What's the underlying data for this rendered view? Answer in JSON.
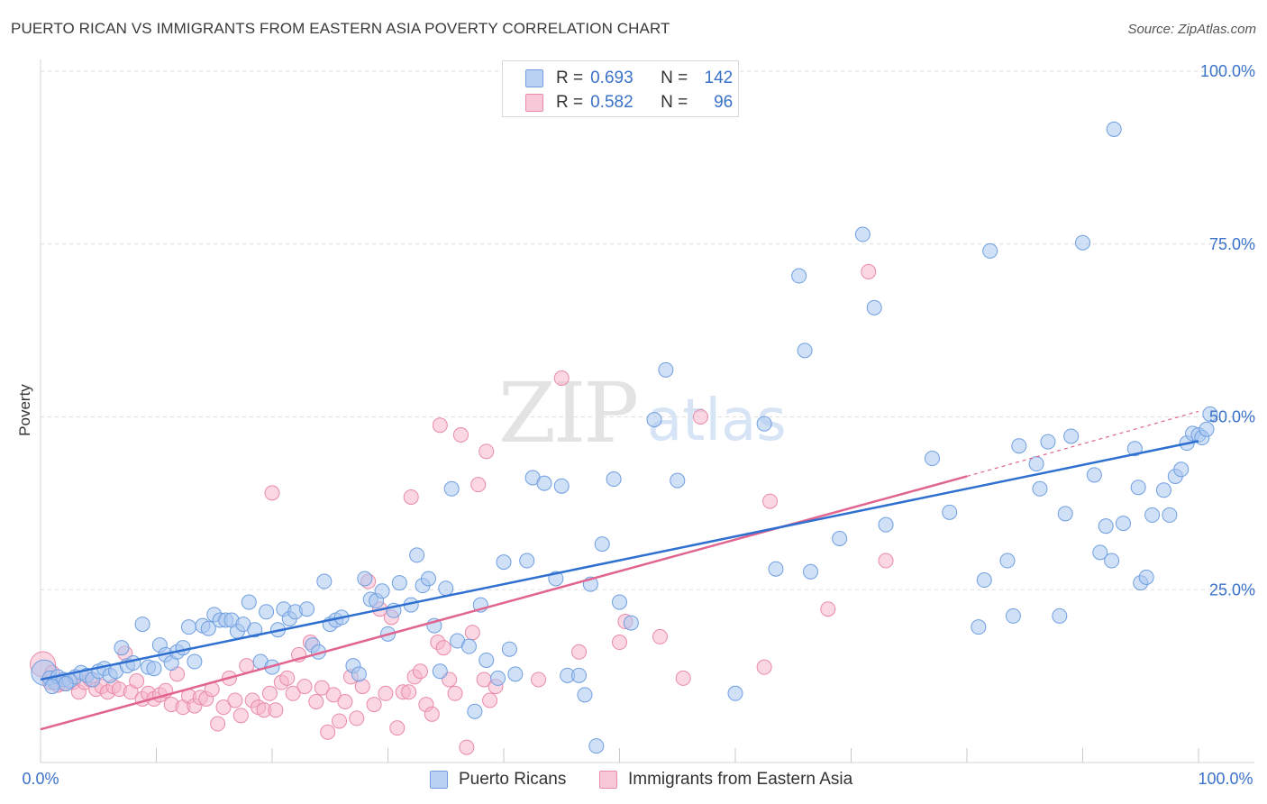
{
  "title": "PUERTO RICAN VS IMMIGRANTS FROM EASTERN ASIA POVERTY CORRELATION CHART",
  "source": "Source: ZipAtlas.com",
  "watermark": {
    "zip": "ZIP",
    "atlas": "atlas"
  },
  "legend": {
    "series1": {
      "r_label": "R =",
      "r_value": "0.693",
      "n_label": "N =",
      "n_value": "142"
    },
    "series2": {
      "r_label": "R =",
      "r_value": "0.582",
      "n_label": "N =",
      "n_value": "96"
    }
  },
  "bottom_legend": {
    "series1": "Puerto Ricans",
    "series2": "Immigrants from Eastern Asia"
  },
  "colors": {
    "blue_fill": "#a9c6f0",
    "blue_stroke": "#6f9fe0",
    "blue_line": "#2e6fd0",
    "pink_fill": "#f6b6ca",
    "pink_stroke": "#e98aab",
    "pink_line": "#e0648f",
    "axis_text": "#3a72c8",
    "grid": "#dddddd"
  },
  "chart_data": {
    "type": "scatter",
    "title": "PUERTO RICAN VS IMMIGRANTS FROM EASTERN ASIA POVERTY CORRELATION CHART",
    "xlabel": "",
    "ylabel": "Poverty",
    "xlim": [
      0,
      100
    ],
    "ylim": [
      0,
      100
    ],
    "x_tick_labels": [
      "0.0%",
      "100.0%"
    ],
    "y_tick_values": [
      25,
      50,
      75,
      100
    ],
    "y_tick_labels": [
      "25.0%",
      "50.0%",
      "75.0%",
      "100.0%"
    ],
    "series": [
      {
        "name": "Puerto Ricans",
        "r": 0.693,
        "n": 142,
        "trend": {
          "x0": 0,
          "y0": 12.0,
          "x1": 100,
          "y1": 46.5
        },
        "points": [
          [
            0.3,
            13.0
          ],
          [
            0.8,
            12.2
          ],
          [
            1.2,
            11.6
          ],
          [
            1.5,
            12.4
          ],
          [
            2.0,
            12.0
          ],
          [
            2.5,
            11.8
          ],
          [
            3.0,
            12.4
          ],
          [
            3.5,
            13.0
          ],
          [
            4.0,
            12.6
          ],
          [
            4.5,
            12.0
          ],
          [
            5.0,
            13.2
          ],
          [
            5.5,
            13.6
          ],
          [
            6.0,
            12.6
          ],
          [
            6.5,
            13.2
          ],
          [
            7.0,
            16.6
          ],
          [
            7.5,
            14.0
          ],
          [
            8.0,
            14.4
          ],
          [
            8.8,
            20.0
          ],
          [
            9.3,
            13.8
          ],
          [
            9.8,
            13.6
          ],
          [
            10.3,
            17.0
          ],
          [
            10.8,
            15.6
          ],
          [
            11.3,
            14.4
          ],
          [
            11.8,
            16.0
          ],
          [
            12.3,
            16.6
          ],
          [
            12.8,
            19.6
          ],
          [
            13.3,
            14.6
          ],
          [
            14.0,
            19.8
          ],
          [
            14.5,
            19.4
          ],
          [
            15.0,
            21.4
          ],
          [
            15.5,
            20.6
          ],
          [
            16.0,
            20.6
          ],
          [
            16.5,
            20.6
          ],
          [
            17.0,
            19.0
          ],
          [
            17.5,
            20.0
          ],
          [
            18.0,
            23.2
          ],
          [
            18.5,
            19.2
          ],
          [
            19.0,
            14.6
          ],
          [
            19.5,
            21.8
          ],
          [
            20.0,
            13.8
          ],
          [
            20.5,
            19.2
          ],
          [
            21.0,
            22.2
          ],
          [
            21.5,
            20.8
          ],
          [
            22.0,
            21.8
          ],
          [
            23.0,
            22.2
          ],
          [
            23.5,
            17.0
          ],
          [
            24.0,
            16.0
          ],
          [
            24.5,
            26.2
          ],
          [
            25.0,
            20.0
          ],
          [
            25.5,
            20.6
          ],
          [
            26.0,
            21.0
          ],
          [
            27.0,
            14.0
          ],
          [
            27.5,
            12.8
          ],
          [
            28.0,
            26.6
          ],
          [
            28.5,
            23.6
          ],
          [
            29.0,
            23.4
          ],
          [
            29.5,
            24.8
          ],
          [
            30.0,
            18.6
          ],
          [
            30.5,
            22.0
          ],
          [
            31.0,
            26.0
          ],
          [
            32.0,
            22.8
          ],
          [
            32.5,
            30.0
          ],
          [
            33.0,
            25.6
          ],
          [
            33.5,
            26.6
          ],
          [
            34.0,
            19.8
          ],
          [
            34.5,
            13.2
          ],
          [
            35.0,
            25.2
          ],
          [
            35.5,
            39.6
          ],
          [
            36.0,
            17.6
          ],
          [
            37.0,
            16.8
          ],
          [
            37.5,
            7.4
          ],
          [
            38.0,
            22.8
          ],
          [
            38.5,
            14.8
          ],
          [
            39.5,
            12.2
          ],
          [
            40.0,
            29.0
          ],
          [
            40.5,
            16.4
          ],
          [
            41.0,
            12.8
          ],
          [
            42.0,
            29.2
          ],
          [
            42.5,
            41.2
          ],
          [
            43.5,
            40.4
          ],
          [
            44.5,
            26.6
          ],
          [
            45.0,
            40.0
          ],
          [
            45.5,
            12.6
          ],
          [
            46.5,
            12.6
          ],
          [
            47.0,
            9.8
          ],
          [
            47.5,
            25.8
          ],
          [
            48.0,
            2.4
          ],
          [
            48.5,
            31.6
          ],
          [
            49.5,
            41.0
          ],
          [
            50.0,
            23.2
          ],
          [
            51.0,
            20.2
          ],
          [
            53.0,
            49.6
          ],
          [
            54.0,
            56.8
          ],
          [
            55.0,
            40.8
          ],
          [
            60.0,
            10.0
          ],
          [
            62.5,
            49.0
          ],
          [
            63.5,
            28.0
          ],
          [
            65.5,
            70.4
          ],
          [
            66.0,
            59.6
          ],
          [
            66.5,
            27.6
          ],
          [
            69.0,
            32.4
          ],
          [
            71.0,
            76.4
          ],
          [
            72.0,
            65.8
          ],
          [
            73.0,
            34.4
          ],
          [
            77.0,
            44.0
          ],
          [
            78.5,
            36.2
          ],
          [
            81.0,
            19.6
          ],
          [
            81.5,
            26.4
          ],
          [
            82.0,
            74.0
          ],
          [
            83.5,
            29.2
          ],
          [
            84.0,
            21.2
          ],
          [
            84.5,
            45.8
          ],
          [
            86.0,
            43.2
          ],
          [
            86.3,
            39.6
          ],
          [
            87.0,
            46.4
          ],
          [
            88.0,
            21.2
          ],
          [
            88.5,
            36.0
          ],
          [
            89.0,
            47.2
          ],
          [
            90.0,
            75.2
          ],
          [
            91.0,
            41.6
          ],
          [
            91.5,
            30.4
          ],
          [
            92.0,
            34.2
          ],
          [
            92.5,
            29.2
          ],
          [
            92.7,
            91.6
          ],
          [
            93.5,
            34.6
          ],
          [
            94.5,
            45.4
          ],
          [
            94.8,
            39.8
          ],
          [
            95.0,
            26.0
          ],
          [
            95.5,
            26.8
          ],
          [
            96.0,
            35.8
          ],
          [
            97.0,
            39.4
          ],
          [
            97.5,
            35.8
          ],
          [
            98.0,
            41.4
          ],
          [
            98.5,
            42.4
          ],
          [
            99.0,
            46.2
          ],
          [
            99.5,
            47.6
          ],
          [
            100.0,
            47.4
          ],
          [
            100.3,
            47.0
          ],
          [
            100.7,
            48.2
          ],
          [
            101.0,
            50.4
          ],
          [
            1.0,
            11.0
          ],
          [
            2.2,
            11.4
          ]
        ]
      },
      {
        "name": "Immigrants from Eastern Asia",
        "r": 0.582,
        "n": 96,
        "trend": {
          "x0": 0,
          "y0": 4.8,
          "x1": 80,
          "y1": 41.4
        },
        "trend_ext": {
          "x0": 80,
          "y0": 41.4,
          "x1": 100,
          "y1": 50.8
        },
        "points": [
          [
            0.2,
            14.2
          ],
          [
            0.8,
            11.6
          ],
          [
            1.5,
            11.2
          ],
          [
            2.0,
            11.4
          ],
          [
            2.8,
            11.6
          ],
          [
            3.3,
            10.2
          ],
          [
            3.8,
            11.6
          ],
          [
            4.3,
            12.0
          ],
          [
            4.8,
            10.6
          ],
          [
            5.3,
            11.0
          ],
          [
            5.8,
            10.2
          ],
          [
            6.3,
            11.0
          ],
          [
            6.8,
            10.6
          ],
          [
            7.3,
            15.8
          ],
          [
            7.8,
            10.2
          ],
          [
            8.3,
            11.8
          ],
          [
            8.8,
            9.2
          ],
          [
            9.3,
            10.0
          ],
          [
            9.8,
            9.2
          ],
          [
            10.3,
            9.8
          ],
          [
            10.8,
            10.4
          ],
          [
            11.3,
            8.4
          ],
          [
            11.8,
            12.8
          ],
          [
            12.3,
            8.0
          ],
          [
            12.8,
            9.6
          ],
          [
            13.3,
            8.2
          ],
          [
            13.8,
            9.4
          ],
          [
            14.3,
            9.2
          ],
          [
            14.8,
            10.6
          ],
          [
            15.3,
            5.6
          ],
          [
            15.8,
            8.0
          ],
          [
            16.3,
            12.2
          ],
          [
            16.8,
            9.0
          ],
          [
            17.3,
            6.8
          ],
          [
            17.8,
            14.0
          ],
          [
            18.3,
            9.0
          ],
          [
            18.8,
            8.0
          ],
          [
            19.3,
            7.6
          ],
          [
            19.8,
            10.0
          ],
          [
            20.3,
            7.6
          ],
          [
            20.8,
            11.6
          ],
          [
            21.3,
            12.2
          ],
          [
            21.8,
            10.0
          ],
          [
            22.3,
            15.6
          ],
          [
            22.8,
            11.0
          ],
          [
            23.3,
            17.4
          ],
          [
            23.8,
            8.8
          ],
          [
            24.3,
            10.8
          ],
          [
            24.8,
            4.4
          ],
          [
            25.3,
            9.8
          ],
          [
            25.8,
            6.0
          ],
          [
            26.3,
            8.8
          ],
          [
            26.8,
            12.4
          ],
          [
            27.3,
            6.4
          ],
          [
            27.8,
            11.0
          ],
          [
            28.3,
            26.2
          ],
          [
            28.8,
            8.4
          ],
          [
            29.3,
            22.2
          ],
          [
            29.8,
            10.0
          ],
          [
            30.3,
            21.0
          ],
          [
            30.8,
            5.0
          ],
          [
            31.3,
            10.2
          ],
          [
            31.8,
            10.2
          ],
          [
            32.3,
            12.4
          ],
          [
            32.8,
            13.2
          ],
          [
            33.3,
            8.4
          ],
          [
            33.8,
            7.0
          ],
          [
            34.3,
            17.4
          ],
          [
            34.8,
            16.6
          ],
          [
            35.3,
            12.0
          ],
          [
            35.8,
            10.0
          ],
          [
            36.3,
            47.4
          ],
          [
            36.8,
            2.2
          ],
          [
            37.3,
            18.8
          ],
          [
            37.8,
            40.2
          ],
          [
            38.3,
            12.0
          ],
          [
            38.8,
            9.0
          ],
          [
            39.3,
            11.0
          ],
          [
            20.0,
            39.0
          ],
          [
            32.0,
            38.4
          ],
          [
            34.5,
            48.8
          ],
          [
            38.5,
            45.0
          ],
          [
            43.0,
            12.0
          ],
          [
            45.0,
            55.6
          ],
          [
            46.5,
            16.0
          ],
          [
            50.0,
            17.4
          ],
          [
            50.5,
            20.4
          ],
          [
            53.5,
            18.2
          ],
          [
            55.5,
            12.2
          ],
          [
            57.0,
            50.0
          ],
          [
            63.0,
            37.8
          ],
          [
            71.5,
            71.0
          ],
          [
            73.0,
            29.2
          ],
          [
            62.5,
            13.8
          ],
          [
            68.0,
            22.2
          ],
          [
            1.0,
            13.0
          ]
        ]
      }
    ]
  }
}
